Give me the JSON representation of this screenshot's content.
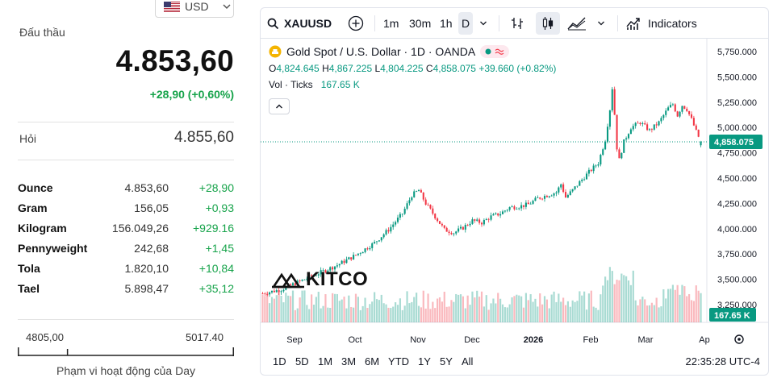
{
  "currency": {
    "code": "USD"
  },
  "bid": {
    "label": "Đấu thầu",
    "price": "4.853,60",
    "change": "+28,90 (+0,60%)"
  },
  "ask": {
    "label": "Hỏi",
    "price": "4.855,60"
  },
  "units": [
    {
      "name": "Ounce",
      "price": "4.853,60",
      "change": "+28,90"
    },
    {
      "name": "Gram",
      "price": "156,05",
      "change": "+0,93"
    },
    {
      "name": "Kilogram",
      "price": "156.049,26",
      "change": "+929.16"
    },
    {
      "name": "Pennyweight",
      "price": "242,68",
      "change": "+1,45"
    },
    {
      "name": "Tola",
      "price": "1.820,10",
      "change": "+10,84"
    },
    {
      "name": "Tael",
      "price": "5.898,47",
      "change": "+35,12"
    }
  ],
  "day_range": {
    "low": "4805,00",
    "high": "5017.40",
    "title": "Phạm vi hoạt động của Day",
    "position": 0.23
  },
  "chart_toolbar": {
    "symbol": "XAUUSD",
    "timeframes": [
      "1m",
      "30m",
      "1h",
      "D"
    ],
    "active_timeframe": "D",
    "indicators_label": "Indicators"
  },
  "legend": {
    "title": "Gold Spot / U.S. Dollar · 1D · OANDA",
    "open_label": "O",
    "open": "4,824.645",
    "high_label": "H",
    "high": "4,867.225",
    "low_label": "L",
    "low": "4,804.225",
    "close_label": "C",
    "close": "4,858.075",
    "change": "+39.660 (+0.82%)",
    "volume_label": "Vol · Ticks",
    "volume_value": "167.65 K"
  },
  "range_buttons": [
    "1D",
    "5D",
    "1M",
    "3M",
    "6M",
    "YTD",
    "1Y",
    "5Y",
    "All"
  ],
  "clock": "22:35:28 UTC-4",
  "watermark": "KITCO",
  "colors": {
    "up": "#089981",
    "down": "#f23645",
    "accent": "#16a34a"
  },
  "chart_data": {
    "type": "candlestick",
    "title": "Gold Spot / U.S. Dollar · 1D · OANDA",
    "y_axis_ticks": [
      5750,
      5500,
      5250,
      5000,
      4750,
      4500,
      4250,
      4000,
      3750,
      3500,
      3250
    ],
    "y_tick_labels": [
      "5,750.000",
      "5,500.000",
      "5,250.000",
      "5,000.000",
      "4,750.000",
      "4,500.000",
      "4,250.000",
      "4,000.000",
      "3,750.000",
      "3,500.000",
      "3,250.000"
    ],
    "x_tick_labels": [
      "Sep",
      "Oct",
      "Nov",
      "Dec",
      "2026",
      "Feb",
      "Mar",
      "Ap"
    ],
    "last_price": 4858.075,
    "last_price_label": "4,858.075",
    "volume_label": "167.65 K",
    "ylim": [
      3130,
      5870
    ],
    "price_path": [
      [
        0,
        3360
      ],
      [
        8,
        3400
      ],
      [
        16,
        3480
      ],
      [
        24,
        3560
      ],
      [
        32,
        3640
      ],
      [
        40,
        3740
      ],
      [
        48,
        3860
      ],
      [
        54,
        3990
      ],
      [
        60,
        4150
      ],
      [
        64,
        4330
      ],
      [
        67,
        4380
      ],
      [
        70,
        4250
      ],
      [
        74,
        4120
      ],
      [
        78,
        3990
      ],
      [
        82,
        3960
      ],
      [
        86,
        4010
      ],
      [
        90,
        4080
      ],
      [
        94,
        4060
      ],
      [
        98,
        4120
      ],
      [
        102,
        4150
      ],
      [
        106,
        4210
      ],
      [
        110,
        4220
      ],
      [
        114,
        4240
      ],
      [
        118,
        4300
      ],
      [
        122,
        4330
      ],
      [
        126,
        4360
      ],
      [
        128,
        4440
      ],
      [
        130,
        4310
      ],
      [
        133,
        4380
      ],
      [
        136,
        4460
      ],
      [
        140,
        4560
      ],
      [
        144,
        4650
      ],
      [
        147,
        4880
      ],
      [
        149,
        5180
      ],
      [
        150,
        5390
      ],
      [
        151,
        5130
      ],
      [
        152,
        4800
      ],
      [
        153,
        4680
      ],
      [
        155,
        4860
      ],
      [
        158,
        5000
      ],
      [
        162,
        5050
      ],
      [
        166,
        4970
      ],
      [
        170,
        5050
      ],
      [
        174,
        5190
      ],
      [
        176,
        5230
      ],
      [
        178,
        5120
      ],
      [
        180,
        5220
      ],
      [
        182,
        5180
      ],
      [
        184,
        5080
      ],
      [
        186,
        4960
      ],
      [
        188,
        4858
      ]
    ],
    "total_candles": 189
  }
}
